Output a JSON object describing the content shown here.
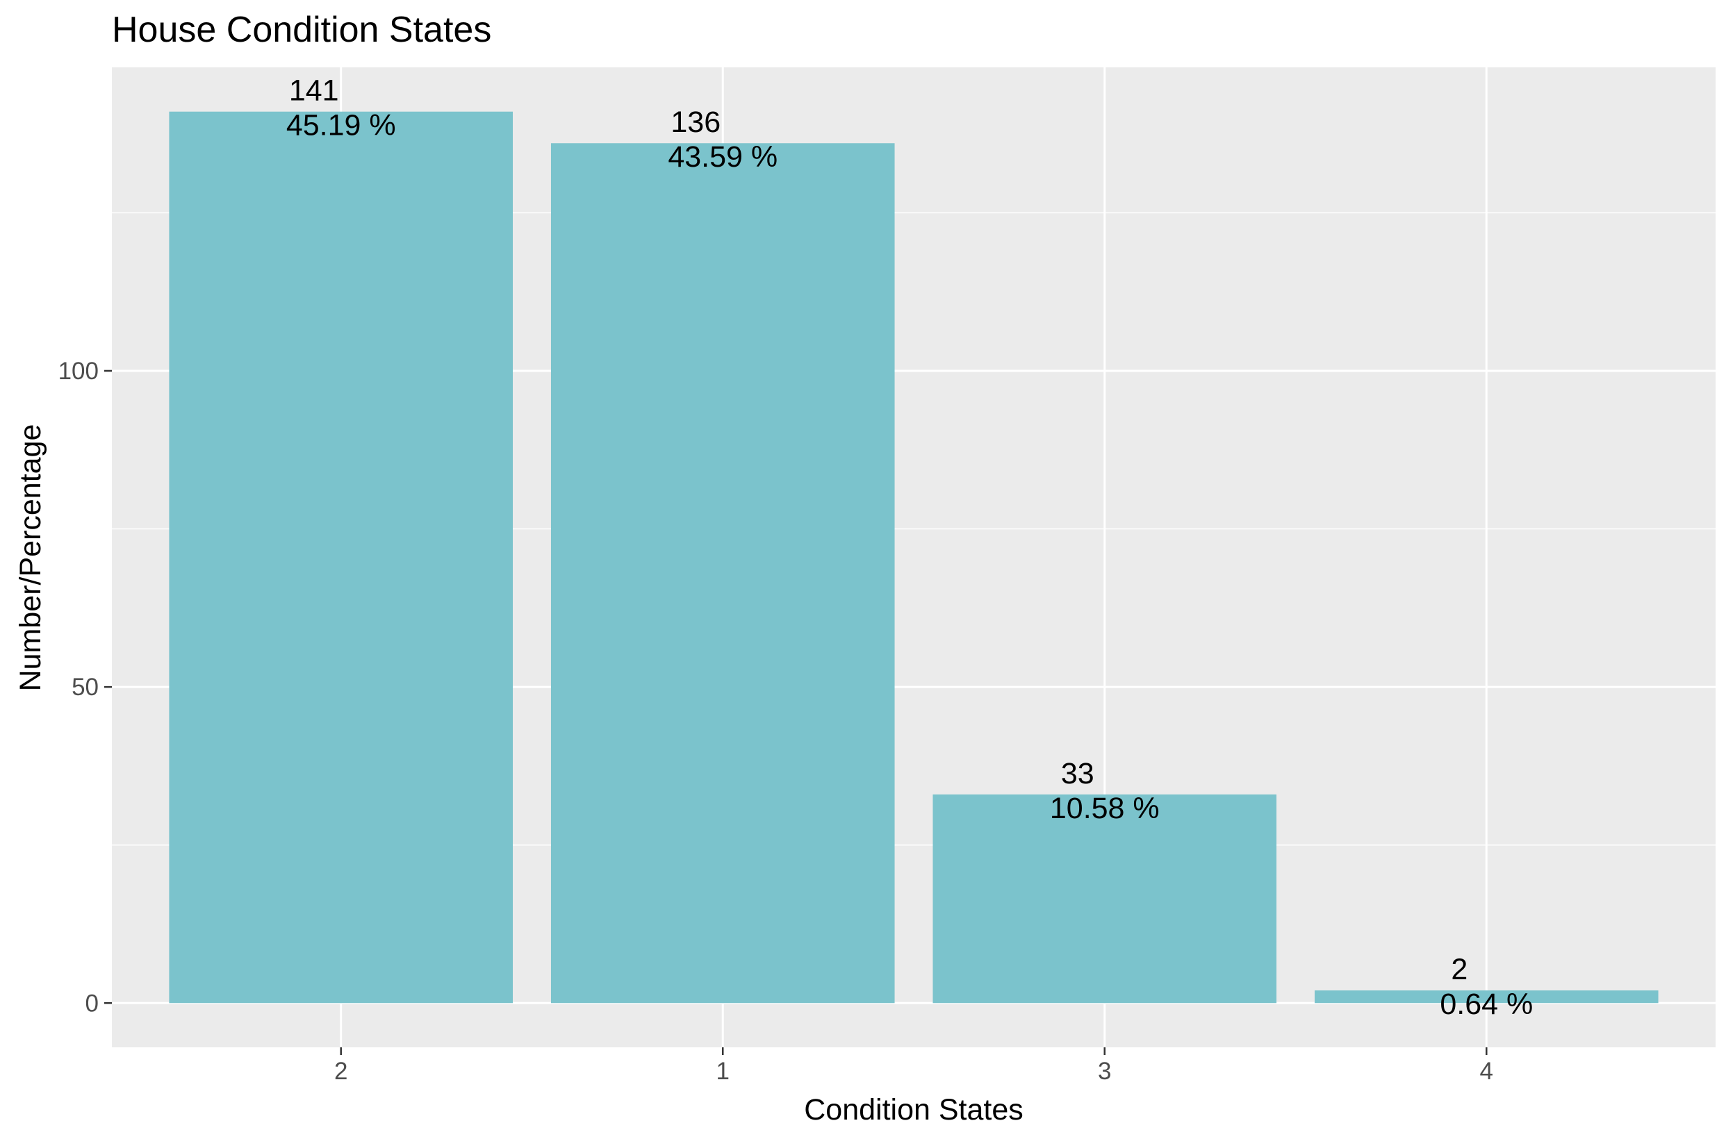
{
  "chart_data": {
    "type": "bar",
    "title": "House Condition States",
    "xlabel": "Condition States",
    "ylabel": "Number/Percentage",
    "categories": [
      "2",
      "1",
      "3",
      "4"
    ],
    "values": [
      141,
      136,
      33,
      2
    ],
    "percent_labels": [
      "45.19 %",
      "43.59 %",
      "10.58 %",
      "0.64 %"
    ],
    "ylim": [
      -7,
      148
    ],
    "y_ticks": [
      0,
      50,
      100
    ],
    "y_minor_ticks": [
      25,
      75,
      125
    ],
    "grid": true,
    "legend": "none",
    "colors": {
      "bar": "#7bc3cc",
      "panel": "#ebebeb",
      "grid": "#ffffff",
      "tick": "#333333",
      "tick_text": "#4d4d4d",
      "text": "#000000"
    }
  }
}
